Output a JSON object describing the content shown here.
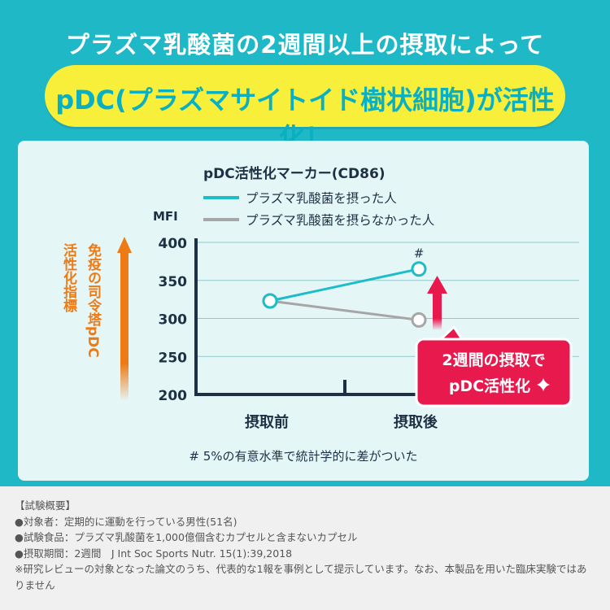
{
  "header": {
    "title": "プラズマ乳酸菌の2週間以上の摂取によって",
    "banner": "pDC(プラズマサイトイド樹状細胞)が活性化！"
  },
  "chart_data": {
    "type": "line",
    "title": "pDC活性化マーカー(CD86)",
    "ylabel": "MFI",
    "side_label_col1": "活性化指標",
    "side_label_col2": "免疫の司令塔pDC",
    "categories": [
      "摂取前",
      "摂取後"
    ],
    "ylim": [
      200,
      400
    ],
    "yticks": [
      400,
      350,
      300,
      250,
      200
    ],
    "series": [
      {
        "name": "プラズマ乳酸菌を摂った人",
        "values": [
          323,
          365
        ],
        "color": "#1cbcc9"
      },
      {
        "name": "プラズマ乳酸菌を摂らなかった人",
        "values": [
          323,
          298
        ],
        "color": "#a6a6a6"
      }
    ],
    "annotation_mark": "#",
    "callout_line1": "2週間の摂取で",
    "callout_line2": "pDC活性化",
    "footnote": "# 5%の有意水準で統計学的に差がついた",
    "colors": {
      "axis": "#1d3144",
      "accent": "#e8194d",
      "arrow_orange": "#ee7a14"
    }
  },
  "footer": {
    "heading": "【試験概要】",
    "line1": "●対象者：定期的に運動を行っている男性(51名)",
    "line2": "●試験食品：プラズマ乳酸菌を1,000億個含むカプセルと含まないカプセル",
    "line3": "●摂取期間：2週間　J Int Soc Sports Nutr. 15(1):39,2018",
    "line4": "※研究レビューの対象となった論文のうち、代表的な1報を事例として提示しています。なお、本製品を用いた臨床実験ではありません"
  }
}
